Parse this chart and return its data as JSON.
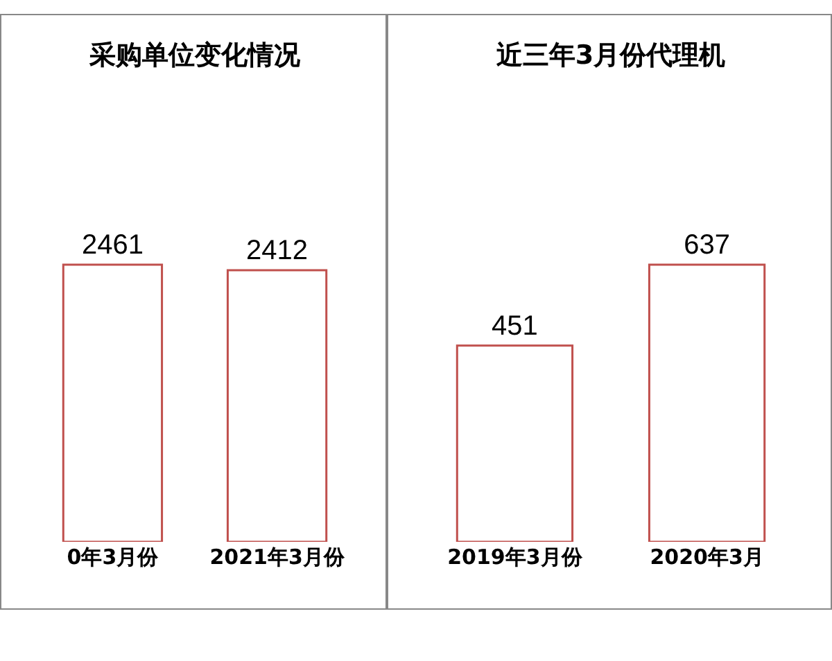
{
  "chart_data": [
    {
      "type": "bar",
      "title": "采购单位变化情况",
      "categories": [
        "0年3月份",
        "2021年3月份"
      ],
      "values": [
        2461,
        2412
      ],
      "color": "#c0504d",
      "data_labels": true,
      "grid": false,
      "legend": false
    },
    {
      "type": "bar",
      "title": "近三年3月份代理机",
      "categories": [
        "2019年3月份",
        "2020年3月"
      ],
      "values": [
        451,
        637
      ],
      "color": "#c0504d",
      "data_labels": true,
      "grid": false,
      "legend": false
    }
  ]
}
